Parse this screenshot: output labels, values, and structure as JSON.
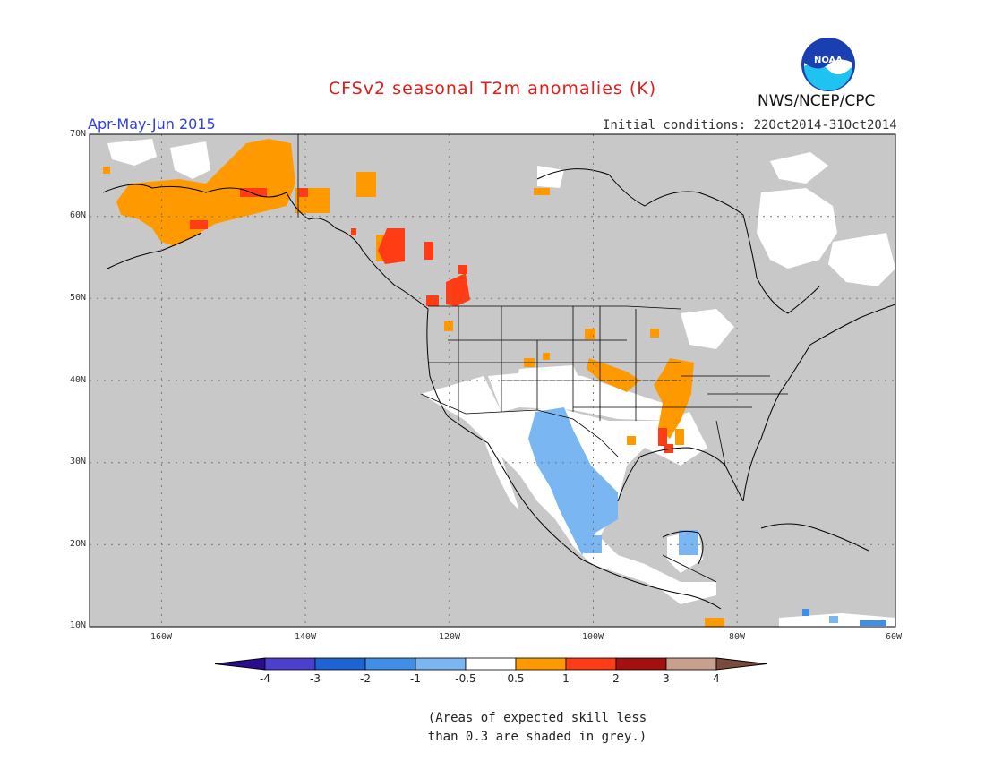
{
  "header": {
    "title": "CFSv2 seasonal T2m anomalies (K)",
    "season": "Apr-May-Jun 2015",
    "initial_conditions": "Initial conditions: 22Oct2014-31Oct2014",
    "agency": "NWS/NCEP/CPC",
    "logo_text": "NOAA"
  },
  "map": {
    "projection": "lat-lon",
    "lon_range": [
      -172,
      -60
    ],
    "lat_range": [
      10,
      70
    ],
    "lat_labels": [
      "70N",
      "60N",
      "50N",
      "40N",
      "30N",
      "20N",
      "10N"
    ],
    "lon_labels": [
      "160W",
      "140W",
      "120W",
      "100W",
      "80W",
      "60W"
    ],
    "gridlines": "dotted",
    "land_color": "#ffffff",
    "ocean_color": "#c8c8c8",
    "low_skill_color": "#c8c8c8"
  },
  "colorbar": {
    "levels": [
      "-4",
      "-3",
      "-2",
      "-1",
      "-0.5",
      "0.5",
      "1",
      "2",
      "3",
      "4"
    ],
    "colors": [
      "#2a0d8e",
      "#4a3fcf",
      "#1d63d6",
      "#3f8fe9",
      "#79b6f2",
      "#ffffff",
      "#ff9900",
      "#ff3c14",
      "#a50f0f",
      "#c9a08e",
      "#7a4a3a"
    ]
  },
  "anomalies": {
    "warm_regions": [
      "Alaska",
      "Western Canada",
      "Pacific Northwest",
      "Mississippi Valley"
    ],
    "cool_regions": [
      "Texas",
      "Mexico",
      "Yucatan"
    ]
  },
  "footnote": {
    "line1": "(Areas of expected skill less",
    "line2": "than 0.3 are shaded in grey.)"
  }
}
